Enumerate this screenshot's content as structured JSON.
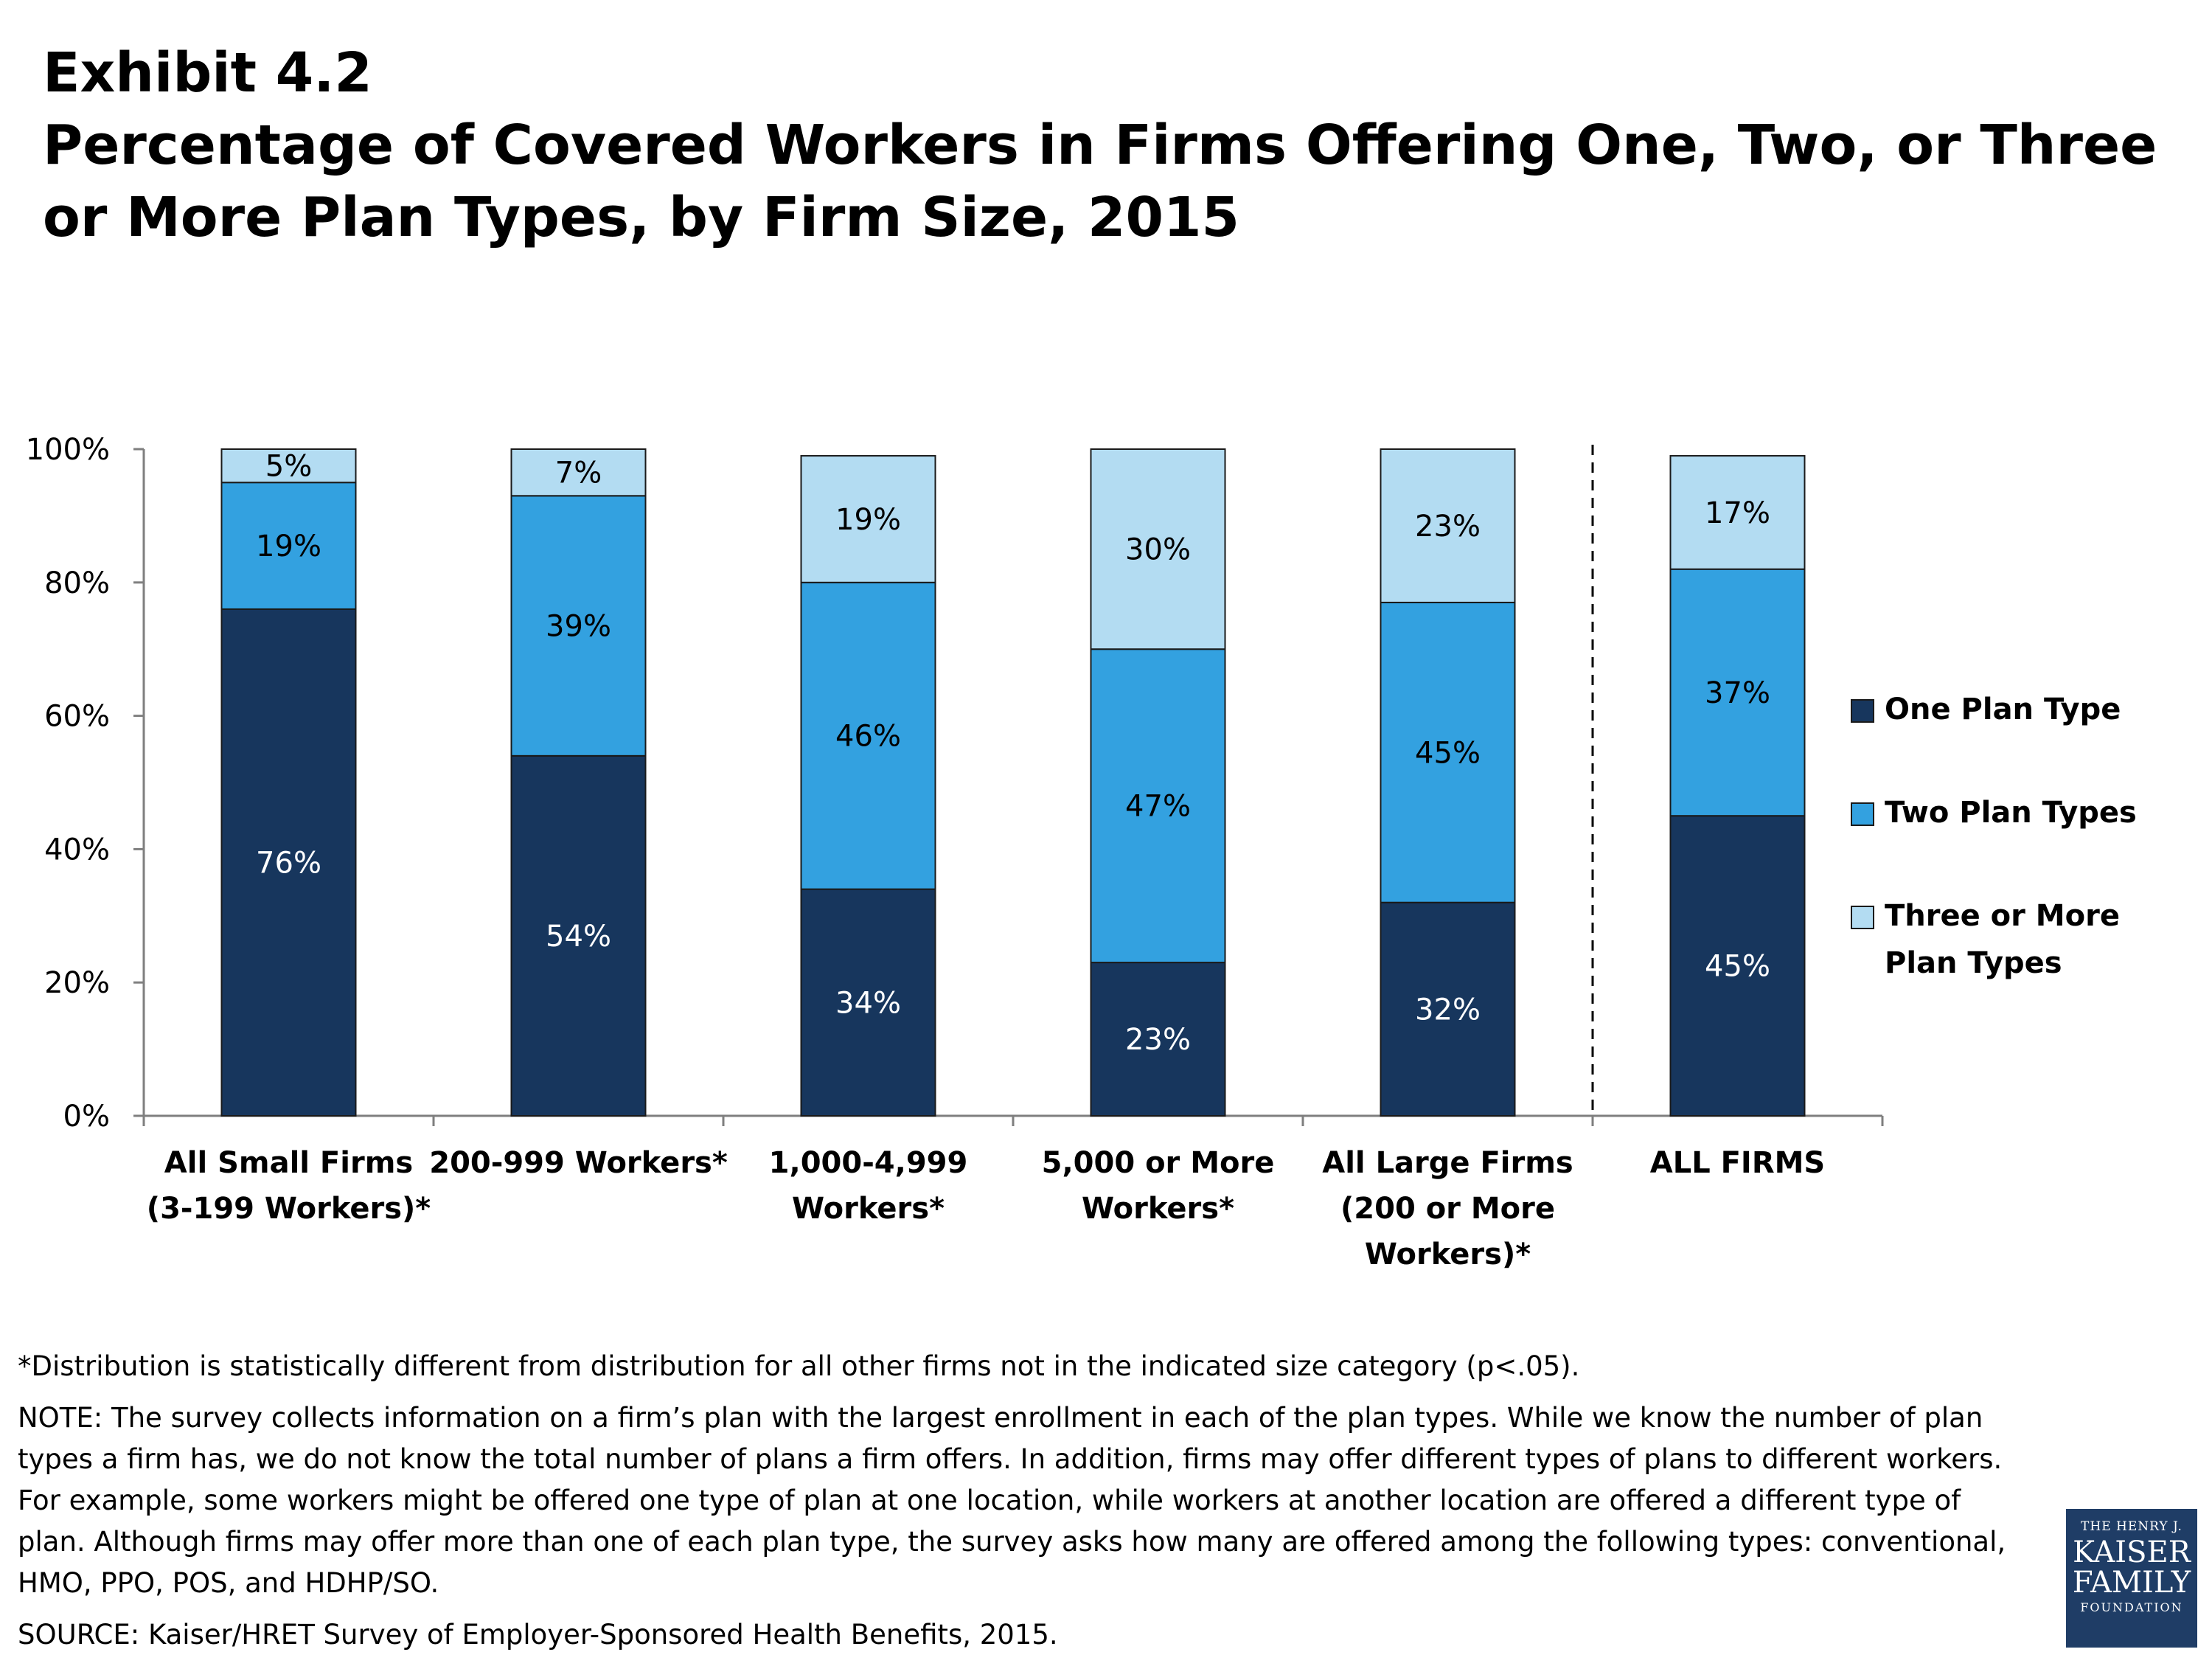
{
  "header": {
    "exhibit": "Exhibit 4.2",
    "title": "Percentage of Covered Workers in Firms Offering One, Two, or Three or More Plan Types, by Firm Size, 2015"
  },
  "chart_data": {
    "type": "bar",
    "stacked": true,
    "categories": [
      [
        "All Small Firms",
        "(3-199 Workers)*"
      ],
      [
        "200-999 Workers*"
      ],
      [
        "1,000-4,999",
        "Workers*"
      ],
      [
        "5,000 or More",
        "Workers*"
      ],
      [
        "All Large Firms",
        "(200 or More",
        "Workers)*"
      ],
      [
        "ALL FIRMS"
      ]
    ],
    "series": [
      {
        "name": "One Plan Type",
        "color": "#17365d",
        "values": [
          76,
          54,
          34,
          23,
          32,
          45
        ],
        "labels": [
          "76%",
          "54%",
          "34%",
          "23%",
          "32%",
          "45%"
        ]
      },
      {
        "name": "Two Plan Types",
        "color": "#33a1e0",
        "values": [
          19,
          39,
          46,
          47,
          45,
          37
        ],
        "labels": [
          "19%",
          "39%",
          "46%",
          "47%",
          "45%",
          "37%"
        ]
      },
      {
        "name": "Three or More Plan Types",
        "color": "#b3dcf2",
        "values": [
          5,
          7,
          19,
          30,
          23,
          17
        ],
        "labels": [
          "5%",
          "7%",
          "19%",
          "30%",
          "23%",
          "17%"
        ]
      }
    ],
    "y_ticks": [
      "0%",
      "20%",
      "40%",
      "60%",
      "80%",
      "100%"
    ],
    "ylim": [
      0,
      100
    ],
    "divider_after_category": 4,
    "legend_position": "right",
    "grid": false
  },
  "legend": {
    "items": [
      {
        "label": "One Plan Type",
        "color": "#17365d"
      },
      {
        "label": "Two Plan Types",
        "color": "#33a1e0"
      },
      {
        "label": "Three or More Plan Types",
        "color": "#b3dcf2"
      }
    ]
  },
  "notes": {
    "footnote": "*Distribution is statistically different from distribution for all other firms not in the indicated size category (p<.05).",
    "note": "NOTE:  The survey collects information on a firm’s plan with the largest enrollment in each of the plan types. While we know the number of plan types a firm has, we do not know the total number of plans a firm offers. In addition, firms may offer different types of plans to different workers. For example, some workers might be offered one type of plan at one location, while workers at another location are offered a different type of plan.  Although firms may offer more than one of each plan type, the survey asks how many are offered among the following types: conventional, HMO, PPO, POS, and HDHP/SO.",
    "source": "SOURCE: Kaiser/HRET Survey of Employer-Sponsored Health Benefits, 2015."
  },
  "logo": {
    "line1": "THE HENRY J.",
    "line2": "KAISER",
    "line3": "FAMILY",
    "line4": "FOUNDATION"
  }
}
